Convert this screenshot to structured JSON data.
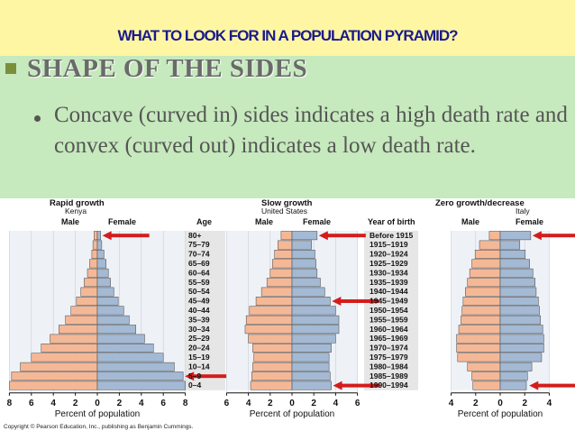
{
  "slide": {
    "title": "WHAT TO LOOK FOR IN A POPULATION PYRAMID?",
    "heading": "SHAPE OF THE SIDES",
    "body": "Concave (curved in) sides indicates a high death rate and convex (curved out) indicates a low death rate.",
    "copyright": "Copyright © Pearson Education, Inc., publishing as Benjamin Cummings.",
    "colors": {
      "title": "#1a1a8c",
      "heading": "#6a6a6a",
      "body": "#555555",
      "slide_bg": "#c6e9bd",
      "title_bg": "#fff6a3"
    }
  },
  "labels": {
    "age": "Age",
    "year_of_birth": "Year of birth",
    "male": "Male",
    "female": "Female",
    "xlabel": "Percent of population"
  },
  "rows": {
    "age_groups": [
      "80+",
      "75–79",
      "70–74",
      "65–69",
      "60–64",
      "55–59",
      "50–54",
      "45–49",
      "40–44",
      "35–39",
      "30–34",
      "25–29",
      "20–24",
      "15–19",
      "10–14",
      "5–9",
      "0–4"
    ],
    "years_of_birth": [
      "Before 1915",
      "1915–1919",
      "1920–1924",
      "1925–1929",
      "1930–1934",
      "1935–1939",
      "1940–1944",
      "1945–1949",
      "1950–1954",
      "1955–1959",
      "1960–1964",
      "1965–1969",
      "1970–1974",
      "1975–1979",
      "1980–1984",
      "1985–1989",
      "1990–1994"
    ]
  },
  "chart_data": [
    {
      "type": "bar",
      "orientation": "horizontal",
      "title": "Rapid growth",
      "subtitle": "Kenya",
      "xlabel": "Percent of population",
      "xticks": [
        "8",
        "6",
        "4",
        "2",
        "0",
        "2",
        "4",
        "6",
        "8"
      ],
      "xlim": [
        -8,
        8
      ],
      "series": [
        {
          "name": "Male",
          "values": [
            0.3,
            0.4,
            0.5,
            0.7,
            0.9,
            1.2,
            1.5,
            1.9,
            2.4,
            2.9,
            3.5,
            4.3,
            5.1,
            6.0,
            7.0,
            7.8,
            8.0
          ],
          "color": "#f5b896"
        },
        {
          "name": "Female",
          "values": [
            0.3,
            0.4,
            0.6,
            0.8,
            1.0,
            1.2,
            1.5,
            1.9,
            2.4,
            2.9,
            3.5,
            4.3,
            5.1,
            6.0,
            7.0,
            7.8,
            8.0
          ],
          "color": "#a3b9d4"
        }
      ],
      "arrow_rows": [
        "80+",
        "5–9"
      ]
    },
    {
      "type": "bar",
      "orientation": "horizontal",
      "title": "Slow growth",
      "subtitle": "United States",
      "xlabel": "Percent of population",
      "xticks": [
        "6",
        "4",
        "2",
        "0",
        "2",
        "4",
        "6"
      ],
      "xlim": [
        -6,
        6
      ],
      "series": [
        {
          "name": "Male",
          "values": [
            1.0,
            1.3,
            1.6,
            1.8,
            2.0,
            2.3,
            2.8,
            3.3,
            3.9,
            4.2,
            4.3,
            4.0,
            3.6,
            3.5,
            3.6,
            3.7,
            3.8
          ],
          "color": "#f5b896"
        },
        {
          "name": "Female",
          "values": [
            2.3,
            1.8,
            2.1,
            2.2,
            2.3,
            2.6,
            3.0,
            3.5,
            4.0,
            4.3,
            4.3,
            4.0,
            3.6,
            3.4,
            3.4,
            3.5,
            3.6
          ],
          "color": "#a3b9d4"
        }
      ],
      "arrow_rows": [
        "80+",
        "45–49",
        "0–4"
      ]
    },
    {
      "type": "bar",
      "orientation": "horizontal",
      "title": "Zero growth/decrease",
      "subtitle": "Italy",
      "xlabel": "Percent of population",
      "xticks": [
        "4",
        "2",
        "0",
        "2",
        "4"
      ],
      "xlim": [
        -4.5,
        4.5
      ],
      "series": [
        {
          "name": "Male",
          "values": [
            1.0,
            1.9,
            2.3,
            2.6,
            2.8,
            3.0,
            3.2,
            3.4,
            3.5,
            3.6,
            3.8,
            4.0,
            4.0,
            3.9,
            3.0,
            2.6,
            2.5
          ],
          "color": "#f5b896"
        },
        {
          "name": "Female",
          "values": [
            2.8,
            1.8,
            2.3,
            2.7,
            3.0,
            3.2,
            3.3,
            3.5,
            3.6,
            3.7,
            3.9,
            4.0,
            4.0,
            3.8,
            2.9,
            2.5,
            2.4
          ],
          "color": "#a3b9d4"
        }
      ],
      "arrow_rows": [
        "80+",
        "0–4"
      ]
    }
  ]
}
